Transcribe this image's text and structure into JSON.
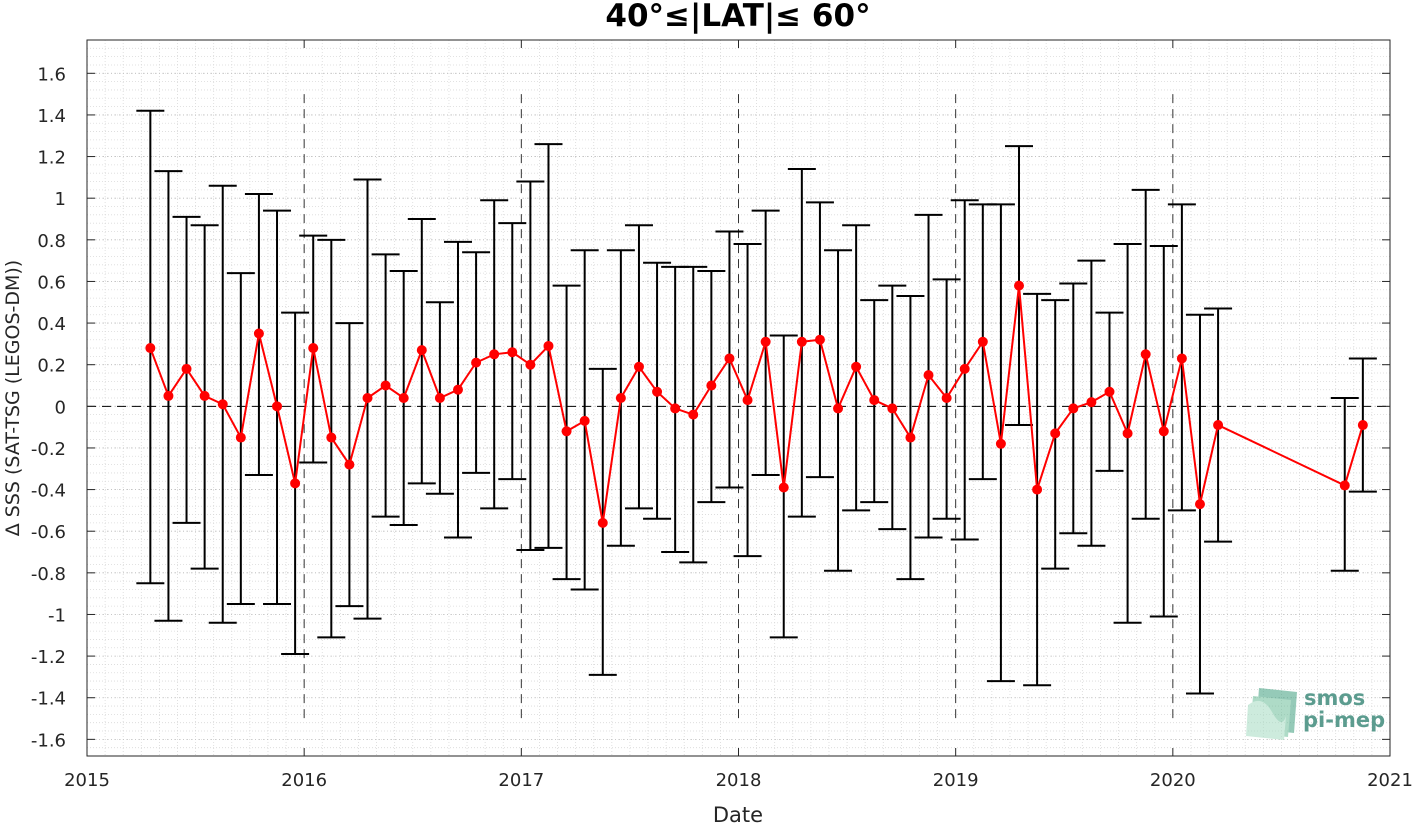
{
  "chart_data": {
    "type": "line",
    "title": "40°≤|LAT|≤ 60°",
    "xlabel": "Date",
    "ylabel": "Δ SSS (SAT-TSG (LEGOS-DM))",
    "xlim": [
      2015,
      2021
    ],
    "ylim": [
      -1.68,
      1.76
    ],
    "x_ticks": [
      "2015",
      "2016",
      "2017",
      "2018",
      "2019",
      "2020",
      "2021"
    ],
    "y_ticks": [
      "-1.6",
      "-1.4",
      "-1.2",
      "-1",
      "-0.8",
      "-0.6",
      "-0.4",
      "-0.2",
      "0",
      "0.2",
      "0.4",
      "0.6",
      "0.8",
      "1",
      "1.2",
      "1.4",
      "1.6"
    ],
    "year_separators": [
      2016,
      2017,
      2018,
      2019,
      2020
    ],
    "grid": true,
    "series": [
      {
        "color": "#ff0000",
        "errorbar_color": "#000000",
        "points": [
          {
            "x": "2015-04",
            "y": 0.28,
            "lo": -0.85,
            "hi": 1.42
          },
          {
            "x": "2015-05",
            "y": 0.05,
            "lo": -1.03,
            "hi": 1.13
          },
          {
            "x": "2015-06",
            "y": 0.18,
            "lo": -0.56,
            "hi": 0.91
          },
          {
            "x": "2015-07",
            "y": 0.05,
            "lo": -0.78,
            "hi": 0.87
          },
          {
            "x": "2015-08",
            "y": 0.01,
            "lo": -1.04,
            "hi": 1.06
          },
          {
            "x": "2015-09",
            "y": -0.15,
            "lo": -0.95,
            "hi": 0.64
          },
          {
            "x": "2015-10",
            "y": 0.35,
            "lo": -0.33,
            "hi": 1.02
          },
          {
            "x": "2015-11",
            "y": 0.0,
            "lo": -0.95,
            "hi": 0.94
          },
          {
            "x": "2015-12",
            "y": -0.37,
            "lo": -1.19,
            "hi": 0.45
          },
          {
            "x": "2016-01",
            "y": 0.28,
            "lo": -0.27,
            "hi": 0.82
          },
          {
            "x": "2016-02",
            "y": -0.15,
            "lo": -1.11,
            "hi": 0.8
          },
          {
            "x": "2016-03",
            "y": -0.28,
            "lo": -0.96,
            "hi": 0.4
          },
          {
            "x": "2016-04",
            "y": 0.04,
            "lo": -1.02,
            "hi": 1.09
          },
          {
            "x": "2016-05",
            "y": 0.1,
            "lo": -0.53,
            "hi": 0.73
          },
          {
            "x": "2016-06",
            "y": 0.04,
            "lo": -0.57,
            "hi": 0.65
          },
          {
            "x": "2016-07",
            "y": 0.27,
            "lo": -0.37,
            "hi": 0.9
          },
          {
            "x": "2016-08",
            "y": 0.04,
            "lo": -0.42,
            "hi": 0.5
          },
          {
            "x": "2016-09",
            "y": 0.08,
            "lo": -0.63,
            "hi": 0.79
          },
          {
            "x": "2016-10",
            "y": 0.21,
            "lo": -0.32,
            "hi": 0.74
          },
          {
            "x": "2016-11",
            "y": 0.25,
            "lo": -0.49,
            "hi": 0.99
          },
          {
            "x": "2016-12",
            "y": 0.26,
            "lo": -0.35,
            "hi": 0.88
          },
          {
            "x": "2017-01",
            "y": 0.2,
            "lo": -0.69,
            "hi": 1.08
          },
          {
            "x": "2017-02",
            "y": 0.29,
            "lo": -0.68,
            "hi": 1.26
          },
          {
            "x": "2017-03",
            "y": -0.12,
            "lo": -0.83,
            "hi": 0.58
          },
          {
            "x": "2017-04",
            "y": -0.07,
            "lo": -0.88,
            "hi": 0.75
          },
          {
            "x": "2017-05",
            "y": -0.56,
            "lo": -1.29,
            "hi": 0.18
          },
          {
            "x": "2017-06",
            "y": 0.04,
            "lo": -0.67,
            "hi": 0.75
          },
          {
            "x": "2017-07",
            "y": 0.19,
            "lo": -0.49,
            "hi": 0.87
          },
          {
            "x": "2017-08",
            "y": 0.07,
            "lo": -0.54,
            "hi": 0.69
          },
          {
            "x": "2017-09",
            "y": -0.01,
            "lo": -0.7,
            "hi": 0.67
          },
          {
            "x": "2017-10",
            "y": -0.04,
            "lo": -0.75,
            "hi": 0.67
          },
          {
            "x": "2017-11",
            "y": 0.1,
            "lo": -0.46,
            "hi": 0.65
          },
          {
            "x": "2017-12",
            "y": 0.23,
            "lo": -0.39,
            "hi": 0.84
          },
          {
            "x": "2018-01",
            "y": 0.03,
            "lo": -0.72,
            "hi": 0.78
          },
          {
            "x": "2018-02",
            "y": 0.31,
            "lo": -0.33,
            "hi": 0.94
          },
          {
            "x": "2018-03",
            "y": -0.39,
            "lo": -1.11,
            "hi": 0.34
          },
          {
            "x": "2018-04",
            "y": 0.31,
            "lo": -0.53,
            "hi": 1.14
          },
          {
            "x": "2018-05",
            "y": 0.32,
            "lo": -0.34,
            "hi": 0.98
          },
          {
            "x": "2018-06",
            "y": -0.01,
            "lo": -0.79,
            "hi": 0.75
          },
          {
            "x": "2018-07",
            "y": 0.19,
            "lo": -0.5,
            "hi": 0.87
          },
          {
            "x": "2018-08",
            "y": 0.03,
            "lo": -0.46,
            "hi": 0.51
          },
          {
            "x": "2018-09",
            "y": -0.01,
            "lo": -0.59,
            "hi": 0.58
          },
          {
            "x": "2018-10",
            "y": -0.15,
            "lo": -0.83,
            "hi": 0.53
          },
          {
            "x": "2018-11",
            "y": 0.15,
            "lo": -0.63,
            "hi": 0.92
          },
          {
            "x": "2018-12",
            "y": 0.04,
            "lo": -0.54,
            "hi": 0.61
          },
          {
            "x": "2019-01",
            "y": 0.18,
            "lo": -0.64,
            "hi": 0.99
          },
          {
            "x": "2019-02",
            "y": 0.31,
            "lo": -0.35,
            "hi": 0.97
          },
          {
            "x": "2019-03",
            "y": -0.18,
            "lo": -1.32,
            "hi": 0.97
          },
          {
            "x": "2019-04",
            "y": 0.58,
            "lo": -0.09,
            "hi": 1.25
          },
          {
            "x": "2019-05",
            "y": -0.4,
            "lo": -1.34,
            "hi": 0.54
          },
          {
            "x": "2019-06",
            "y": -0.13,
            "lo": -0.78,
            "hi": 0.51
          },
          {
            "x": "2019-07",
            "y": -0.01,
            "lo": -0.61,
            "hi": 0.59
          },
          {
            "x": "2019-08",
            "y": 0.02,
            "lo": -0.67,
            "hi": 0.7
          },
          {
            "x": "2019-09",
            "y": 0.07,
            "lo": -0.31,
            "hi": 0.45
          },
          {
            "x": "2019-10",
            "y": -0.13,
            "lo": -1.04,
            "hi": 0.78
          },
          {
            "x": "2019-11",
            "y": 0.25,
            "lo": -0.54,
            "hi": 1.04
          },
          {
            "x": "2019-12",
            "y": -0.12,
            "lo": -1.01,
            "hi": 0.77
          },
          {
            "x": "2020-01",
            "y": 0.23,
            "lo": -0.5,
            "hi": 0.97
          },
          {
            "x": "2020-02",
            "y": -0.47,
            "lo": -1.38,
            "hi": 0.44
          },
          {
            "x": "2020-03",
            "y": -0.09,
            "lo": -0.65,
            "hi": 0.47
          },
          {
            "x": "2020-10",
            "y": -0.38,
            "lo": -0.79,
            "hi": 0.04
          },
          {
            "x": "2020-11",
            "y": -0.09,
            "lo": -0.41,
            "hi": 0.23
          }
        ]
      }
    ]
  },
  "logo": {
    "line1": "smos",
    "line2": "pi-mep"
  }
}
